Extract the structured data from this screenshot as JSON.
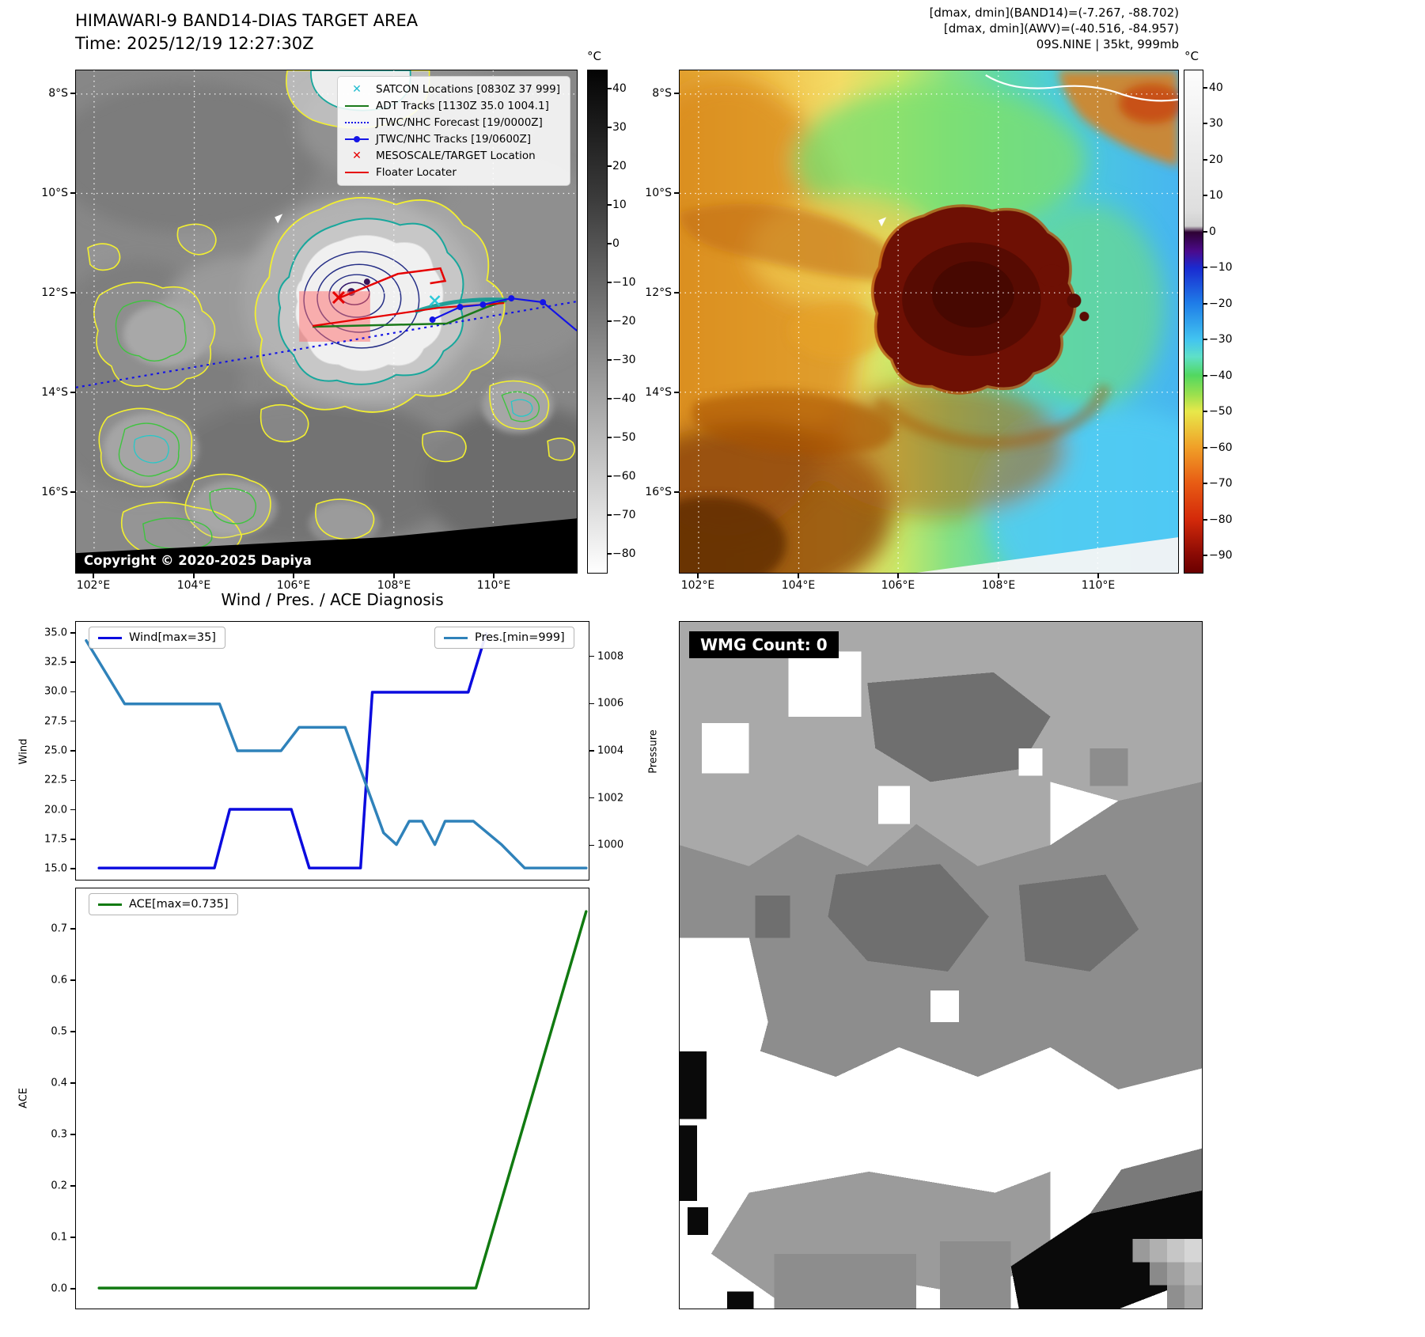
{
  "header": {
    "title_line1": "HIMAWARI-9 BAND14-DIAS TARGET AREA",
    "title_line2": "Time: 2025/12/19 12:27:30Z",
    "annotation_line1": "[dmax, dmin](BAND14)=(-7.267, -88.702)",
    "annotation_line2": "[dmax, dmin](AWV)=(-40.516, -84.957)",
    "annotation_line3": "09S.NINE | 35kt, 999mb"
  },
  "map_band14": {
    "x_ticks": [
      "102°E",
      "104°E",
      "106°E",
      "108°E",
      "110°E"
    ],
    "y_ticks": [
      "8°S",
      "10°S",
      "12°S",
      "14°S",
      "16°S"
    ],
    "colorbar": {
      "unit": "°C",
      "ticks": [
        "40",
        "30",
        "20",
        "10",
        "0",
        "−10",
        "−20",
        "−30",
        "−40",
        "−50",
        "−60",
        "−70",
        "−80"
      ]
    },
    "legend": [
      {
        "label": "SATCON Locations [0830Z 37 999]",
        "marker": "x-marker",
        "color": "#20bcd0"
      },
      {
        "label": "ADT Tracks [1130Z 35.0 1004.1]",
        "marker": "solid-line",
        "color": "#1b7a1b"
      },
      {
        "label": "JTWC/NHC Forecast [19/0000Z]",
        "marker": "dotted-line",
        "color": "#1414e6"
      },
      {
        "label": "JTWC/NHC Tracks [19/0600Z]",
        "marker": "line-with-dot",
        "color": "#1414e6"
      },
      {
        "label": "MESOSCALE/TARGET Location",
        "marker": "x-marker",
        "color": "#e60000"
      },
      {
        "label": "Floater Locater",
        "marker": "solid-line",
        "color": "#e60000"
      }
    ],
    "copyright": "Copyright © 2020-2025 Dapiya"
  },
  "map_awv": {
    "x_ticks": [
      "102°E",
      "104°E",
      "106°E",
      "108°E",
      "110°E"
    ],
    "y_ticks": [
      "8°S",
      "10°S",
      "12°S",
      "14°S",
      "16°S"
    ],
    "colorbar": {
      "unit": "°C",
      "ticks": [
        "40",
        "30",
        "20",
        "10",
        "0",
        "−10",
        "−20",
        "−30",
        "−40",
        "−50",
        "−60",
        "−70",
        "−80",
        "−90"
      ]
    }
  },
  "diagnosis": {
    "title": "Wind / Pres. / ACE Diagnosis",
    "wind_axis_label": "Wind",
    "pressure_axis_label": "Pressure",
    "ace_axis_label": "ACE"
  },
  "wmg": {
    "count_label": "WMG Count: 0"
  },
  "chart_data": [
    {
      "id": "wind_pres",
      "type": "line",
      "title": "Wind / Pres. / ACE Diagnosis",
      "x_range": [
        0,
        1
      ],
      "grid": false,
      "left_axis": {
        "label": "Wind",
        "lim": [
          14.0,
          36.0
        ],
        "ticks": [
          [
            15,
            "15.0"
          ],
          [
            17.5,
            "17.5"
          ],
          [
            20,
            "20.0"
          ],
          [
            22.5,
            "22.5"
          ],
          [
            25,
            "25.0"
          ],
          [
            27.5,
            "27.5"
          ],
          [
            30,
            "30.0"
          ],
          [
            32.5,
            "32.5"
          ],
          [
            35,
            "35.0"
          ]
        ]
      },
      "right_axis": {
        "label": "Pressure",
        "lim": [
          998.5,
          1009.5
        ],
        "ticks": [
          [
            1000,
            "1000"
          ],
          [
            1002,
            "1002"
          ],
          [
            1004,
            "1004"
          ],
          [
            1006,
            "1006"
          ],
          [
            1008,
            "1008"
          ]
        ]
      },
      "series": [
        {
          "name": "Wind[max=35]",
          "color": "#0b0bdf",
          "width": 3.5,
          "axis": "left",
          "points": [
            [
              0.045,
              15
            ],
            [
              0.27,
              15
            ],
            [
              0.3,
              20
            ],
            [
              0.42,
              20
            ],
            [
              0.455,
              15
            ],
            [
              0.555,
              15
            ],
            [
              0.578,
              30
            ],
            [
              0.765,
              30
            ],
            [
              0.8,
              35
            ]
          ]
        },
        {
          "name": "Pres.[min=999]",
          "color": "#2f82ba",
          "width": 3.5,
          "axis": "right",
          "points": [
            [
              0.02,
              1008.7
            ],
            [
              0.095,
              1006
            ],
            [
              0.28,
              1006
            ],
            [
              0.315,
              1004
            ],
            [
              0.4,
              1004
            ],
            [
              0.435,
              1005
            ],
            [
              0.525,
              1005
            ],
            [
              0.6,
              1000.5
            ],
            [
              0.625,
              1000
            ],
            [
              0.65,
              1001
            ],
            [
              0.675,
              1001
            ],
            [
              0.7,
              1000
            ],
            [
              0.72,
              1001
            ],
            [
              0.775,
              1001
            ],
            [
              0.83,
              1000
            ],
            [
              0.875,
              999
            ],
            [
              0.995,
              999
            ]
          ]
        }
      ]
    },
    {
      "id": "ace",
      "type": "line",
      "x_range": [
        0,
        1
      ],
      "grid": false,
      "left_axis": {
        "label": "ACE",
        "lim": [
          -0.04,
          0.78
        ],
        "ticks": [
          [
            0,
            "0.0"
          ],
          [
            0.1,
            "0.1"
          ],
          [
            0.2,
            "0.2"
          ],
          [
            0.3,
            "0.3"
          ],
          [
            0.4,
            "0.4"
          ],
          [
            0.5,
            "0.5"
          ],
          [
            0.6,
            "0.6"
          ],
          [
            0.7,
            "0.7"
          ]
        ]
      },
      "series": [
        {
          "name": "ACE[max=0.735]",
          "color": "#117a11",
          "width": 3.5,
          "axis": "left",
          "points": [
            [
              0.045,
              0
            ],
            [
              0.78,
              0
            ],
            [
              0.995,
              0.735
            ]
          ]
        }
      ]
    }
  ]
}
